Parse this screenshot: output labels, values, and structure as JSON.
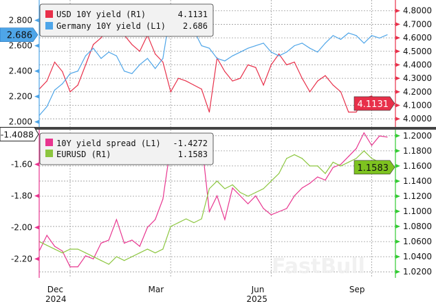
{
  "chart_data": [
    {
      "type": "line",
      "panel": "top",
      "x_ticks": [
        {
          "label": "Dec",
          "index": 4
        },
        {
          "label": "Mar",
          "index": 17
        },
        {
          "label": "Jun",
          "index": 30
        },
        {
          "label": "Sep",
          "index": 43
        }
      ],
      "left_axis": {
        "ylim": [
          1.96,
          2.96
        ],
        "ticks": [
          "2.000",
          "2.200",
          "2.400",
          "2.600",
          "2.800"
        ],
        "tick_values": [
          2.0,
          2.2,
          2.4,
          2.6,
          2.8
        ]
      },
      "right_axis": {
        "ylim": [
          3.94,
          4.88
        ],
        "ticks": [
          "4.0000",
          "4.1000",
          "4.2000",
          "4.3000",
          "4.4000",
          "4.5000",
          "4.6000",
          "4.7000",
          "4.8000"
        ],
        "tick_values": [
          4.0,
          4.1,
          4.2,
          4.3,
          4.4,
          4.5,
          4.6,
          4.7,
          4.8
        ]
      },
      "series": [
        {
          "name": "USD 10Y yield (R1)",
          "axis": "right",
          "color": "#e8304a",
          "last_label": "4.1131",
          "values": [
            4.22,
            4.28,
            4.42,
            4.35,
            4.2,
            4.25,
            4.4,
            4.55,
            4.6,
            4.68,
            4.78,
            4.62,
            4.55,
            4.5,
            4.62,
            4.48,
            4.42,
            4.2,
            4.3,
            4.28,
            4.25,
            4.22,
            4.05,
            4.45,
            4.35,
            4.28,
            4.3,
            4.4,
            4.38,
            4.25,
            4.4,
            4.48,
            4.4,
            4.42,
            4.3,
            4.2,
            4.28,
            4.32,
            4.25,
            4.2,
            4.05,
            4.05,
            4.15,
            4.17,
            4.08,
            4.1131
          ]
        },
        {
          "name": "Germany 10Y yield (L1)",
          "axis": "left",
          "color": "#4ea5e8",
          "last_label": "2.686",
          "values": [
            2.05,
            2.12,
            2.25,
            2.3,
            2.38,
            2.4,
            2.52,
            2.58,
            2.5,
            2.55,
            2.52,
            2.4,
            2.38,
            2.45,
            2.5,
            2.42,
            2.5,
            2.88,
            2.85,
            2.78,
            2.72,
            2.6,
            2.58,
            2.5,
            2.48,
            2.52,
            2.55,
            2.58,
            2.6,
            2.62,
            2.55,
            2.52,
            2.55,
            2.6,
            2.62,
            2.58,
            2.55,
            2.62,
            2.68,
            2.65,
            2.7,
            2.68,
            2.62,
            2.68,
            2.66,
            2.686
          ]
        }
      ]
    },
    {
      "type": "line",
      "panel": "bottom",
      "x_ticks": [
        {
          "label": "Dec",
          "sub": "2024",
          "index": 4
        },
        {
          "label": "Mar",
          "index": 17
        },
        {
          "label": "Jun",
          "sub": "2025",
          "index": 30
        },
        {
          "label": "Sep",
          "index": 43
        }
      ],
      "left_axis": {
        "ylim": [
          -2.32,
          -1.38
        ],
        "ticks": [
          "-2.20",
          "-2.00",
          "-1.80",
          "-1.60"
        ],
        "tick_values": [
          -2.2,
          -2.0,
          -1.8,
          -1.6
        ],
        "marker_label": "-1.4088",
        "marker_value": -1.4088
      },
      "right_axis": {
        "ylim": [
          1.012,
          1.208
        ],
        "ticks": [
          "1.0200",
          "1.0400",
          "1.0600",
          "1.0800",
          "1.1000",
          "1.1200",
          "1.1400",
          "1.1600",
          "1.1800",
          "1.2000"
        ],
        "tick_values": [
          1.02,
          1.04,
          1.06,
          1.08,
          1.1,
          1.12,
          1.14,
          1.16,
          1.18,
          1.2
        ]
      },
      "series": [
        {
          "name": "10Y yield spread (L1)",
          "axis": "left",
          "color": "#e8358f",
          "last_label": "-1.4272",
          "values": [
            -2.15,
            -2.05,
            -2.12,
            -2.15,
            -2.25,
            -2.25,
            -2.18,
            -2.2,
            -2.1,
            -2.08,
            -1.95,
            -2.1,
            -2.08,
            -2.12,
            -2.0,
            -1.95,
            -1.82,
            -1.48,
            -1.45,
            -1.5,
            -1.55,
            -1.45,
            -1.9,
            -1.8,
            -1.95,
            -1.75,
            -1.8,
            -1.85,
            -1.8,
            -1.88,
            -1.92,
            -1.9,
            -1.88,
            -1.8,
            -1.75,
            -1.72,
            -1.68,
            -1.7,
            -1.62,
            -1.6,
            -1.55,
            -1.5,
            -1.4,
            -1.48,
            -1.42,
            -1.4272
          ]
        },
        {
          "name": "EURUSD (R1)",
          "axis": "right",
          "color": "#8cc63f",
          "last_label": "1.1583",
          "values": [
            1.06,
            1.055,
            1.05,
            1.045,
            1.05,
            1.05,
            1.045,
            1.04,
            1.035,
            1.03,
            1.04,
            1.035,
            1.04,
            1.045,
            1.05,
            1.045,
            1.05,
            1.08,
            1.085,
            1.09,
            1.085,
            1.09,
            1.13,
            1.14,
            1.13,
            1.135,
            1.125,
            1.12,
            1.125,
            1.13,
            1.14,
            1.15,
            1.17,
            1.175,
            1.17,
            1.16,
            1.16,
            1.15,
            1.165,
            1.16,
            1.165,
            1.17,
            1.18,
            1.17,
            1.165,
            1.1583
          ]
        }
      ]
    }
  ],
  "watermark": "FastBull"
}
